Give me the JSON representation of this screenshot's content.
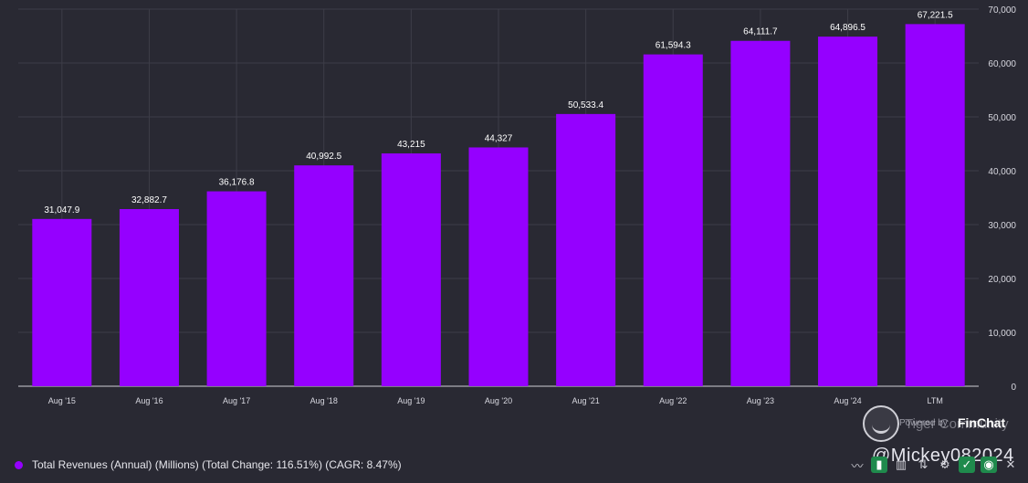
{
  "chart_data": {
    "type": "bar",
    "categories": [
      "Aug '15",
      "Aug '16",
      "Aug '17",
      "Aug '18",
      "Aug '19",
      "Aug '20",
      "Aug '21",
      "Aug '22",
      "Aug '23",
      "Aug '24",
      "LTM"
    ],
    "values": [
      31047.9,
      32882.7,
      36176.8,
      40992.5,
      43215,
      44327,
      50533.4,
      61594.3,
      64111.7,
      64896.5,
      67221.5
    ],
    "value_labels": [
      "31,047.9",
      "32,882.7",
      "36,176.8",
      "40,992.5",
      "43,215",
      "44,327",
      "50,533.4",
      "61,594.3",
      "64,111.7",
      "64,896.5",
      "67,221.5"
    ],
    "ylim": [
      0,
      70000
    ],
    "yticks": [
      0,
      10000,
      20000,
      30000,
      40000,
      50000,
      60000,
      70000
    ],
    "ytick_labels": [
      "0",
      "10,000",
      "20,000",
      "30,000",
      "40,000",
      "50,000",
      "60,000",
      "70,000"
    ],
    "grid": true,
    "y_axis_side": "right",
    "series_name": "Total Revenues (Annual) (Millions) (Total Change: 116.51%) (CAGR: 8.47%)",
    "bar_color": "#9500ff"
  },
  "legend": {
    "label": "Total Revenues (Annual) (Millions) (Total Change: 116.51%) (CAGR: 8.47%)"
  },
  "brand": {
    "powered_by": "Powered by",
    "name": "FinChat",
    "community": "Tiger Community",
    "user": "@Mickey082024"
  },
  "colors": {
    "background": "#292933",
    "grid": "#3d3d48",
    "bar": "#9500ff",
    "text": "#e8e8ee"
  }
}
